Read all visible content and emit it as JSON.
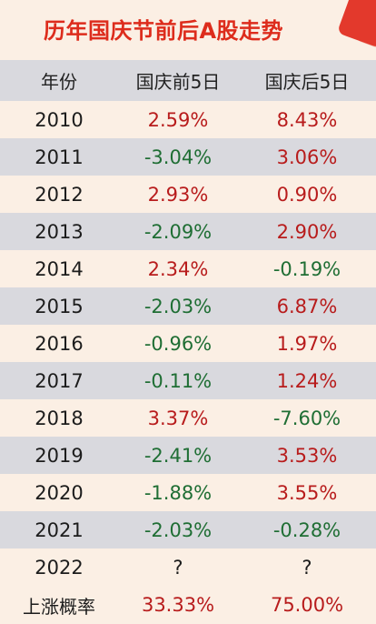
{
  "title": "历年国庆节前后A股走势",
  "colors": {
    "positive": "#b81c1c",
    "negative": "#1f6e34",
    "title": "#dd2c1c"
  },
  "chart_data": {
    "type": "table",
    "columns": [
      "年份",
      "国庆前5日",
      "国庆后5日"
    ],
    "rows": [
      {
        "year": "2010",
        "pre": "2.59%",
        "post": "8.43%"
      },
      {
        "year": "2011",
        "pre": "-3.04%",
        "post": "3.06%"
      },
      {
        "year": "2012",
        "pre": "2.93%",
        "post": "0.90%"
      },
      {
        "year": "2013",
        "pre": "-2.09%",
        "post": "2.90%"
      },
      {
        "year": "2014",
        "pre": "2.34%",
        "post": "-0.19%"
      },
      {
        "year": "2015",
        "pre": "-2.03%",
        "post": "6.87%"
      },
      {
        "year": "2016",
        "pre": "-0.96%",
        "post": "1.97%"
      },
      {
        "year": "2017",
        "pre": "-0.11%",
        "post": "1.24%"
      },
      {
        "year": "2018",
        "pre": "3.37%",
        "post": "-7.60%"
      },
      {
        "year": "2019",
        "pre": "-2.41%",
        "post": "3.53%"
      },
      {
        "year": "2020",
        "pre": "-1.88%",
        "post": "3.55%"
      },
      {
        "year": "2021",
        "pre": "-2.03%",
        "post": "-0.28%"
      },
      {
        "year": "2022",
        "pre": "?",
        "post": "?"
      }
    ],
    "summary": {
      "label": "上涨概率",
      "pre": "33.33%",
      "post": "75.00%"
    }
  }
}
